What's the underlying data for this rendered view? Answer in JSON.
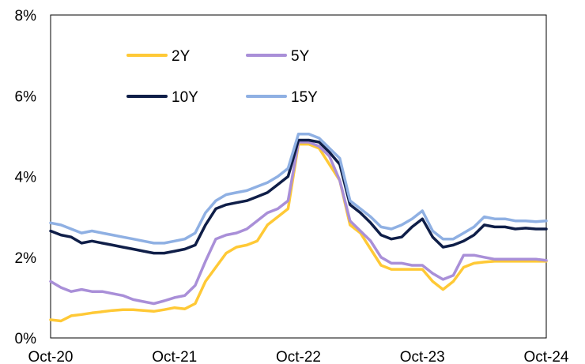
{
  "chart_data": {
    "type": "line",
    "title": "",
    "xlabel": "",
    "ylabel": "",
    "ylim": [
      0,
      8
    ],
    "y_ticks": [
      "0%",
      "2%",
      "4%",
      "6%",
      "8%"
    ],
    "y_tick_values": [
      0,
      2,
      4,
      6,
      8
    ],
    "xlim": [
      "2020-10",
      "2024-10"
    ],
    "x_ticks": [
      "Oct-20",
      "Oct-21",
      "Oct-22",
      "Oct-23",
      "Oct-24"
    ],
    "x_tick_values": [
      "2020-10",
      "2021-10",
      "2022-10",
      "2023-10",
      "2024-10"
    ],
    "grid": false,
    "legend_position": "top-left",
    "x": [
      "2020-10",
      "2020-11",
      "2020-12",
      "2021-01",
      "2021-02",
      "2021-03",
      "2021-04",
      "2021-05",
      "2021-06",
      "2021-07",
      "2021-08",
      "2021-09",
      "2021-10",
      "2021-11",
      "2021-12",
      "2022-01",
      "2022-02",
      "2022-03",
      "2022-04",
      "2022-05",
      "2022-06",
      "2022-07",
      "2022-08",
      "2022-09",
      "2022-10",
      "2022-11",
      "2022-12",
      "2023-01",
      "2023-02",
      "2023-03",
      "2023-04",
      "2023-05",
      "2023-06",
      "2023-07",
      "2023-08",
      "2023-09",
      "2023-10",
      "2023-11",
      "2023-12",
      "2024-01",
      "2024-02",
      "2024-03",
      "2024-04",
      "2024-05",
      "2024-06",
      "2024-07",
      "2024-08",
      "2024-09",
      "2024-10"
    ],
    "series": [
      {
        "name": "2Y",
        "color": "#FFC936",
        "values": [
          0.45,
          0.42,
          0.55,
          0.58,
          0.62,
          0.65,
          0.68,
          0.7,
          0.7,
          0.68,
          0.66,
          0.7,
          0.75,
          0.72,
          0.85,
          1.4,
          1.75,
          2.1,
          2.25,
          2.3,
          2.4,
          2.8,
          3.0,
          3.2,
          4.8,
          4.8,
          4.7,
          4.3,
          3.9,
          2.8,
          2.6,
          2.2,
          1.8,
          1.7,
          1.7,
          1.7,
          1.7,
          1.4,
          1.2,
          1.4,
          1.75,
          1.85,
          1.88,
          1.9,
          1.9,
          1.9,
          1.9,
          1.9,
          1.9
        ]
      },
      {
        "name": "5Y",
        "color": "#A98FD8",
        "values": [
          1.4,
          1.25,
          1.15,
          1.2,
          1.15,
          1.15,
          1.1,
          1.05,
          0.95,
          0.9,
          0.85,
          0.92,
          1.0,
          1.05,
          1.3,
          1.9,
          2.45,
          2.55,
          2.6,
          2.7,
          2.9,
          3.1,
          3.2,
          3.4,
          4.85,
          4.85,
          4.75,
          4.5,
          3.9,
          2.9,
          2.65,
          2.4,
          2.0,
          1.85,
          1.85,
          1.8,
          1.8,
          1.6,
          1.45,
          1.55,
          2.05,
          2.05,
          2.0,
          1.95,
          1.95,
          1.95,
          1.95,
          1.95,
          1.92
        ]
      },
      {
        "name": "10Y",
        "color": "#0F1E48",
        "values": [
          2.65,
          2.55,
          2.5,
          2.35,
          2.4,
          2.35,
          2.3,
          2.25,
          2.2,
          2.15,
          2.1,
          2.1,
          2.15,
          2.2,
          2.3,
          2.8,
          3.2,
          3.3,
          3.35,
          3.4,
          3.5,
          3.6,
          3.8,
          4.0,
          4.9,
          4.9,
          4.85,
          4.6,
          4.3,
          3.3,
          3.1,
          2.85,
          2.55,
          2.45,
          2.5,
          2.75,
          2.95,
          2.5,
          2.25,
          2.3,
          2.4,
          2.55,
          2.8,
          2.75,
          2.75,
          2.7,
          2.72,
          2.7,
          2.7
        ]
      },
      {
        "name": "15Y",
        "color": "#8FB0E3",
        "values": [
          2.85,
          2.8,
          2.7,
          2.6,
          2.65,
          2.6,
          2.55,
          2.5,
          2.45,
          2.4,
          2.35,
          2.35,
          2.4,
          2.45,
          2.6,
          3.1,
          3.4,
          3.55,
          3.6,
          3.65,
          3.75,
          3.85,
          4.0,
          4.2,
          5.05,
          5.05,
          4.95,
          4.7,
          4.45,
          3.4,
          3.2,
          3.0,
          2.75,
          2.7,
          2.8,
          2.95,
          3.15,
          2.65,
          2.45,
          2.45,
          2.6,
          2.75,
          3.0,
          2.95,
          2.95,
          2.9,
          2.9,
          2.88,
          2.9
        ]
      }
    ]
  }
}
